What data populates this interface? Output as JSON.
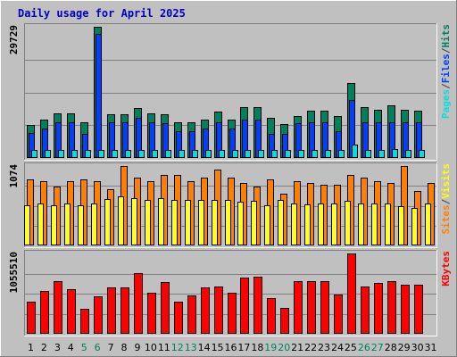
{
  "chart_data": {
    "type": "bar",
    "title": "Daily usage for April 2025",
    "days": [
      "1",
      "2",
      "3",
      "4",
      "5",
      "6",
      "7",
      "8",
      "9",
      "10",
      "11",
      "12",
      "13",
      "14",
      "15",
      "16",
      "17",
      "18",
      "19",
      "20",
      "21",
      "22",
      "23",
      "24",
      "25",
      "26",
      "27",
      "28",
      "29",
      "30",
      "31"
    ],
    "weekend_days": [
      "5",
      "6",
      "12",
      "13",
      "19",
      "20",
      "26",
      "27"
    ],
    "panels": [
      {
        "id": "hits",
        "ymax_label": "29729",
        "ymax": 29729,
        "legend": [
          {
            "label": "Pages",
            "color": "#00e0e0"
          },
          {
            "label": "/",
            "color": "#404040"
          },
          {
            "label": "Files",
            "color": "#0040ff"
          },
          {
            "label": "/",
            "color": "#404040"
          },
          {
            "label": "Hits",
            "color": "#008060"
          }
        ],
        "series": [
          {
            "name": "Hits",
            "color": "#00805c",
            "values": [
              7500,
              8700,
              10200,
              10200,
              8100,
              29729,
              10000,
              10000,
              11400,
              10200,
              10000,
              8100,
              8100,
              8700,
              10500,
              8700,
              11600,
              11600,
              9000,
              7700,
              9500,
              10700,
              10700,
              9500,
              16900,
              11600,
              11000,
              12000,
              11000,
              10700,
              0
            ]
          },
          {
            "name": "Files",
            "color": "#0040ff",
            "values": [
              5700,
              6700,
              8100,
              8100,
              5400,
              28200,
              8100,
              8100,
              9000,
              8100,
              7900,
              6100,
              6100,
              6700,
              8100,
              6700,
              8700,
              8700,
              5400,
              5400,
              7900,
              8100,
              8100,
              6100,
              13100,
              8100,
              8100,
              8100,
              8100,
              8100,
              0
            ]
          },
          {
            "name": "Pages",
            "color": "#00e0e0",
            "values": [
              1750,
              1750,
              1750,
              1750,
              1750,
              1750,
              1750,
              1750,
              1750,
              1750,
              1750,
              1750,
              1750,
              1750,
              1750,
              1750,
              1750,
              1750,
              1750,
              1750,
              1750,
              1750,
              1750,
              1750,
              3100,
              1750,
              1750,
              2000,
              1750,
              1750,
              0
            ]
          }
        ]
      },
      {
        "id": "visits",
        "ymax_label": "1074",
        "ymax": 1074,
        "legend": [
          {
            "label": "Sites",
            "color": "#ff8000"
          },
          {
            "label": "/",
            "color": "#404040"
          },
          {
            "label": "Visits",
            "color": "#ffff00"
          }
        ],
        "series": [
          {
            "name": "Visits",
            "color": "#ff8000",
            "values": [
              890,
              870,
              800,
              870,
              890,
              870,
              760,
              1074,
              920,
              870,
              950,
              950,
              870,
              920,
              1030,
              920,
              840,
              800,
              890,
              700,
              870,
              840,
              820,
              820,
              950,
              920,
              870,
              840,
              1074,
              740,
              840
            ]
          },
          {
            "name": "Sites",
            "color": "#ffff20",
            "values": [
              540,
              570,
              540,
              570,
              540,
              570,
              630,
              660,
              640,
              620,
              640,
              620,
              620,
              610,
              620,
              620,
              590,
              600,
              540,
              620,
              570,
              550,
              570,
              570,
              600,
              570,
              570,
              570,
              530,
              510,
              570
            ]
          }
        ]
      },
      {
        "id": "kbytes",
        "ymax_label": "1055510",
        "ymax": 1055510,
        "legend": [
          {
            "label": "KBytes",
            "color": "#ff0000"
          }
        ],
        "series": [
          {
            "name": "KBytes",
            "color": "#ff0000",
            "values": [
              425000,
              560000,
              690000,
              590000,
              330000,
              490000,
              610000,
              610000,
              800000,
              540000,
              680000,
              420000,
              500000,
              610000,
              620000,
              540000,
              740000,
              750000,
              470000,
              340000,
              690000,
              690000,
              690000,
              520000,
              1055510,
              620000,
              670000,
              690000,
              640000,
              640000,
              0
            ]
          }
        ]
      }
    ]
  }
}
